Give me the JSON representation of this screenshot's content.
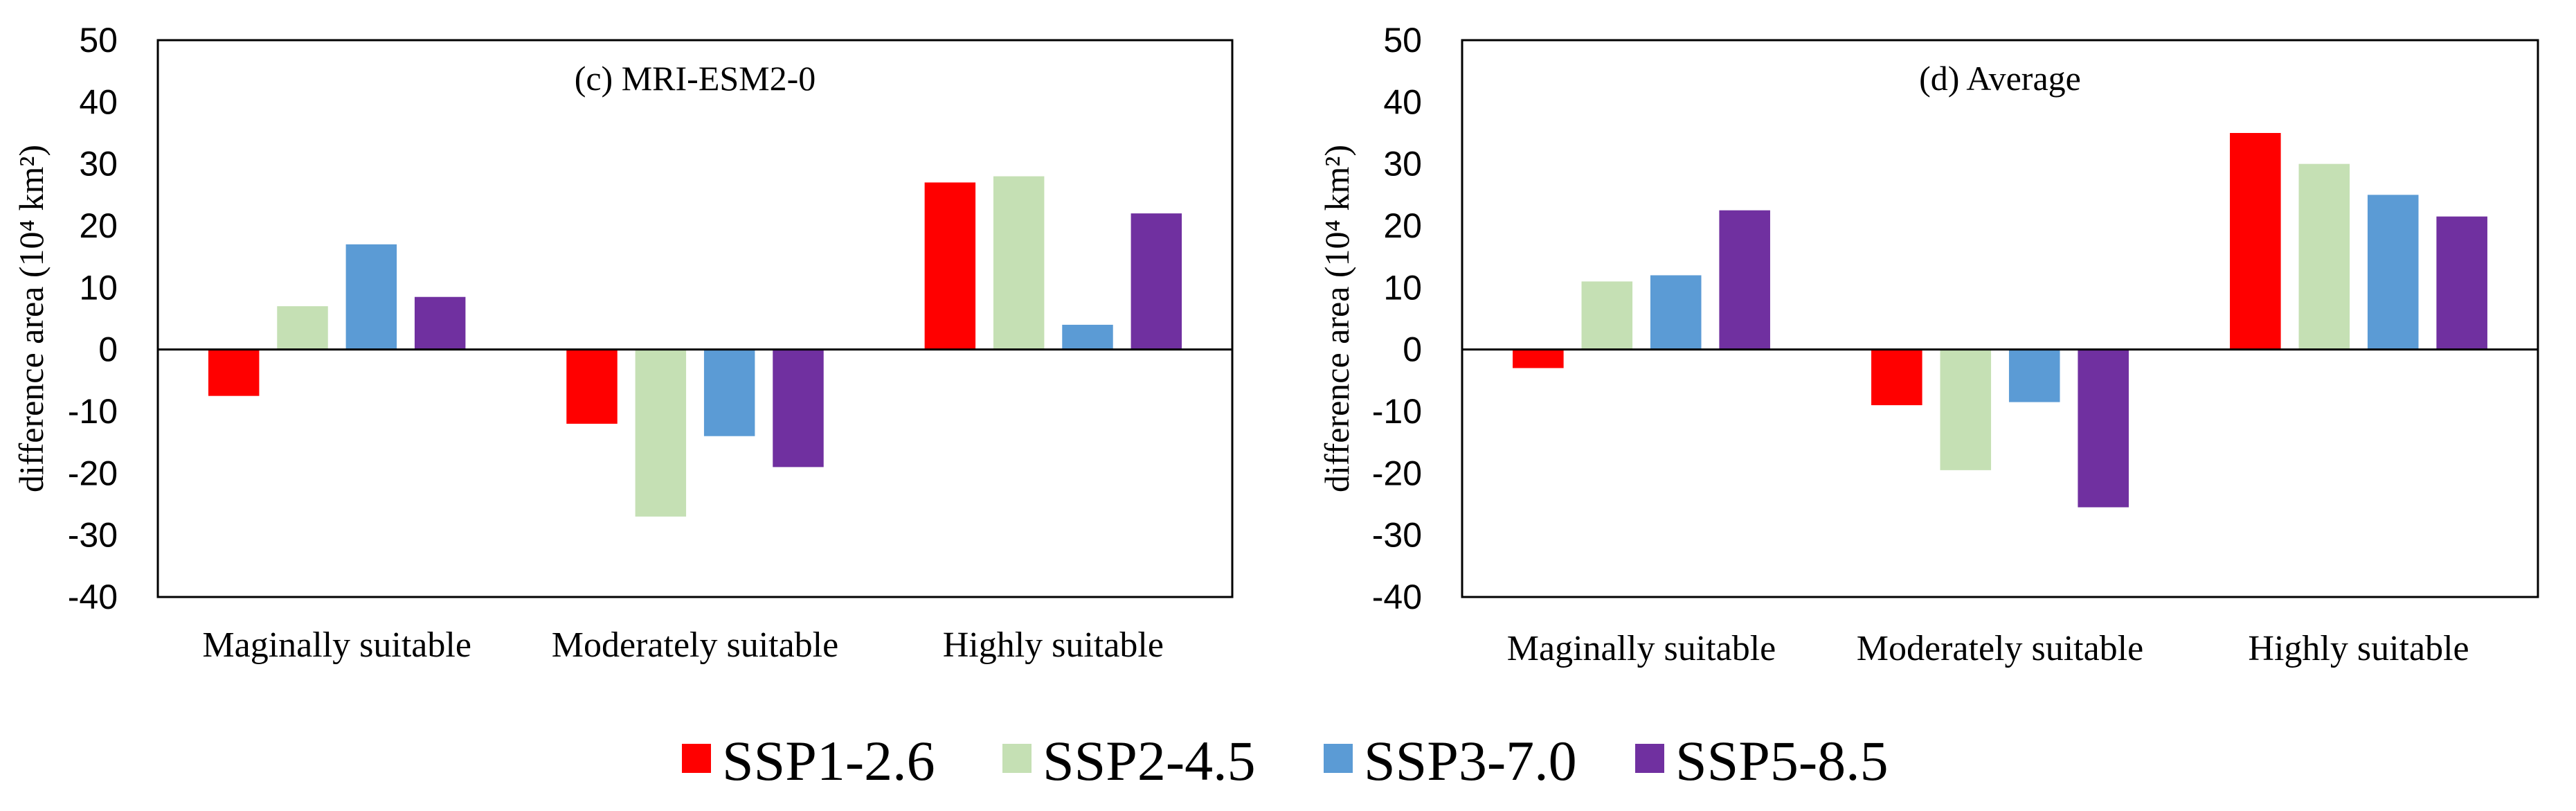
{
  "chart_data": [
    {
      "type": "bar",
      "title": "(c) MRI-ESM2-0",
      "ylabel": "difference area (10⁴ km²)",
      "xlabel": "",
      "ylim": [
        -40,
        50
      ],
      "yticks": [
        50,
        40,
        30,
        20,
        10,
        0,
        -10,
        -20,
        -30,
        -40
      ],
      "categories": [
        "Maginally suitable",
        "Moderately suitable",
        "Highly suitable"
      ],
      "series": [
        {
          "name": "SSP1-2.6",
          "values": [
            -7.5,
            -12,
            27
          ]
        },
        {
          "name": "SSP2-4.5",
          "values": [
            7,
            -27,
            28
          ]
        },
        {
          "name": "SSP3-7.0",
          "values": [
            17,
            -14,
            4
          ]
        },
        {
          "name": "SSP5-8.5",
          "values": [
            8.5,
            -19,
            22
          ]
        }
      ],
      "grid": false
    },
    {
      "type": "bar",
      "title": "(d) Average",
      "ylabel": "difference area (10⁴ km²)",
      "xlabel": "",
      "ylim": [
        -40,
        50
      ],
      "yticks": [
        50,
        40,
        30,
        20,
        10,
        0,
        -10,
        -20,
        -30,
        -40
      ],
      "categories": [
        "Maginally suitable",
        "Moderately suitable",
        "Highly suitable"
      ],
      "series": [
        {
          "name": "SSP1-2.6",
          "values": [
            -3,
            -9,
            35
          ]
        },
        {
          "name": "SSP2-4.5",
          "values": [
            11,
            -19.5,
            30
          ]
        },
        {
          "name": "SSP3-7.0",
          "values": [
            12,
            -8.5,
            25
          ]
        },
        {
          "name": "SSP5-8.5",
          "values": [
            22.5,
            -25.5,
            21.5
          ]
        }
      ],
      "grid": false
    }
  ],
  "legend": {
    "position": "bottom-center",
    "items": [
      {
        "label": "SSP1-2.6",
        "color": "#ff0000"
      },
      {
        "label": "SSP2-4.5",
        "color": "#c5e0b4"
      },
      {
        "label": "SSP3-7.0",
        "color": "#5b9bd5"
      },
      {
        "label": "SSP5-8.5",
        "color": "#7030a0"
      }
    ]
  }
}
